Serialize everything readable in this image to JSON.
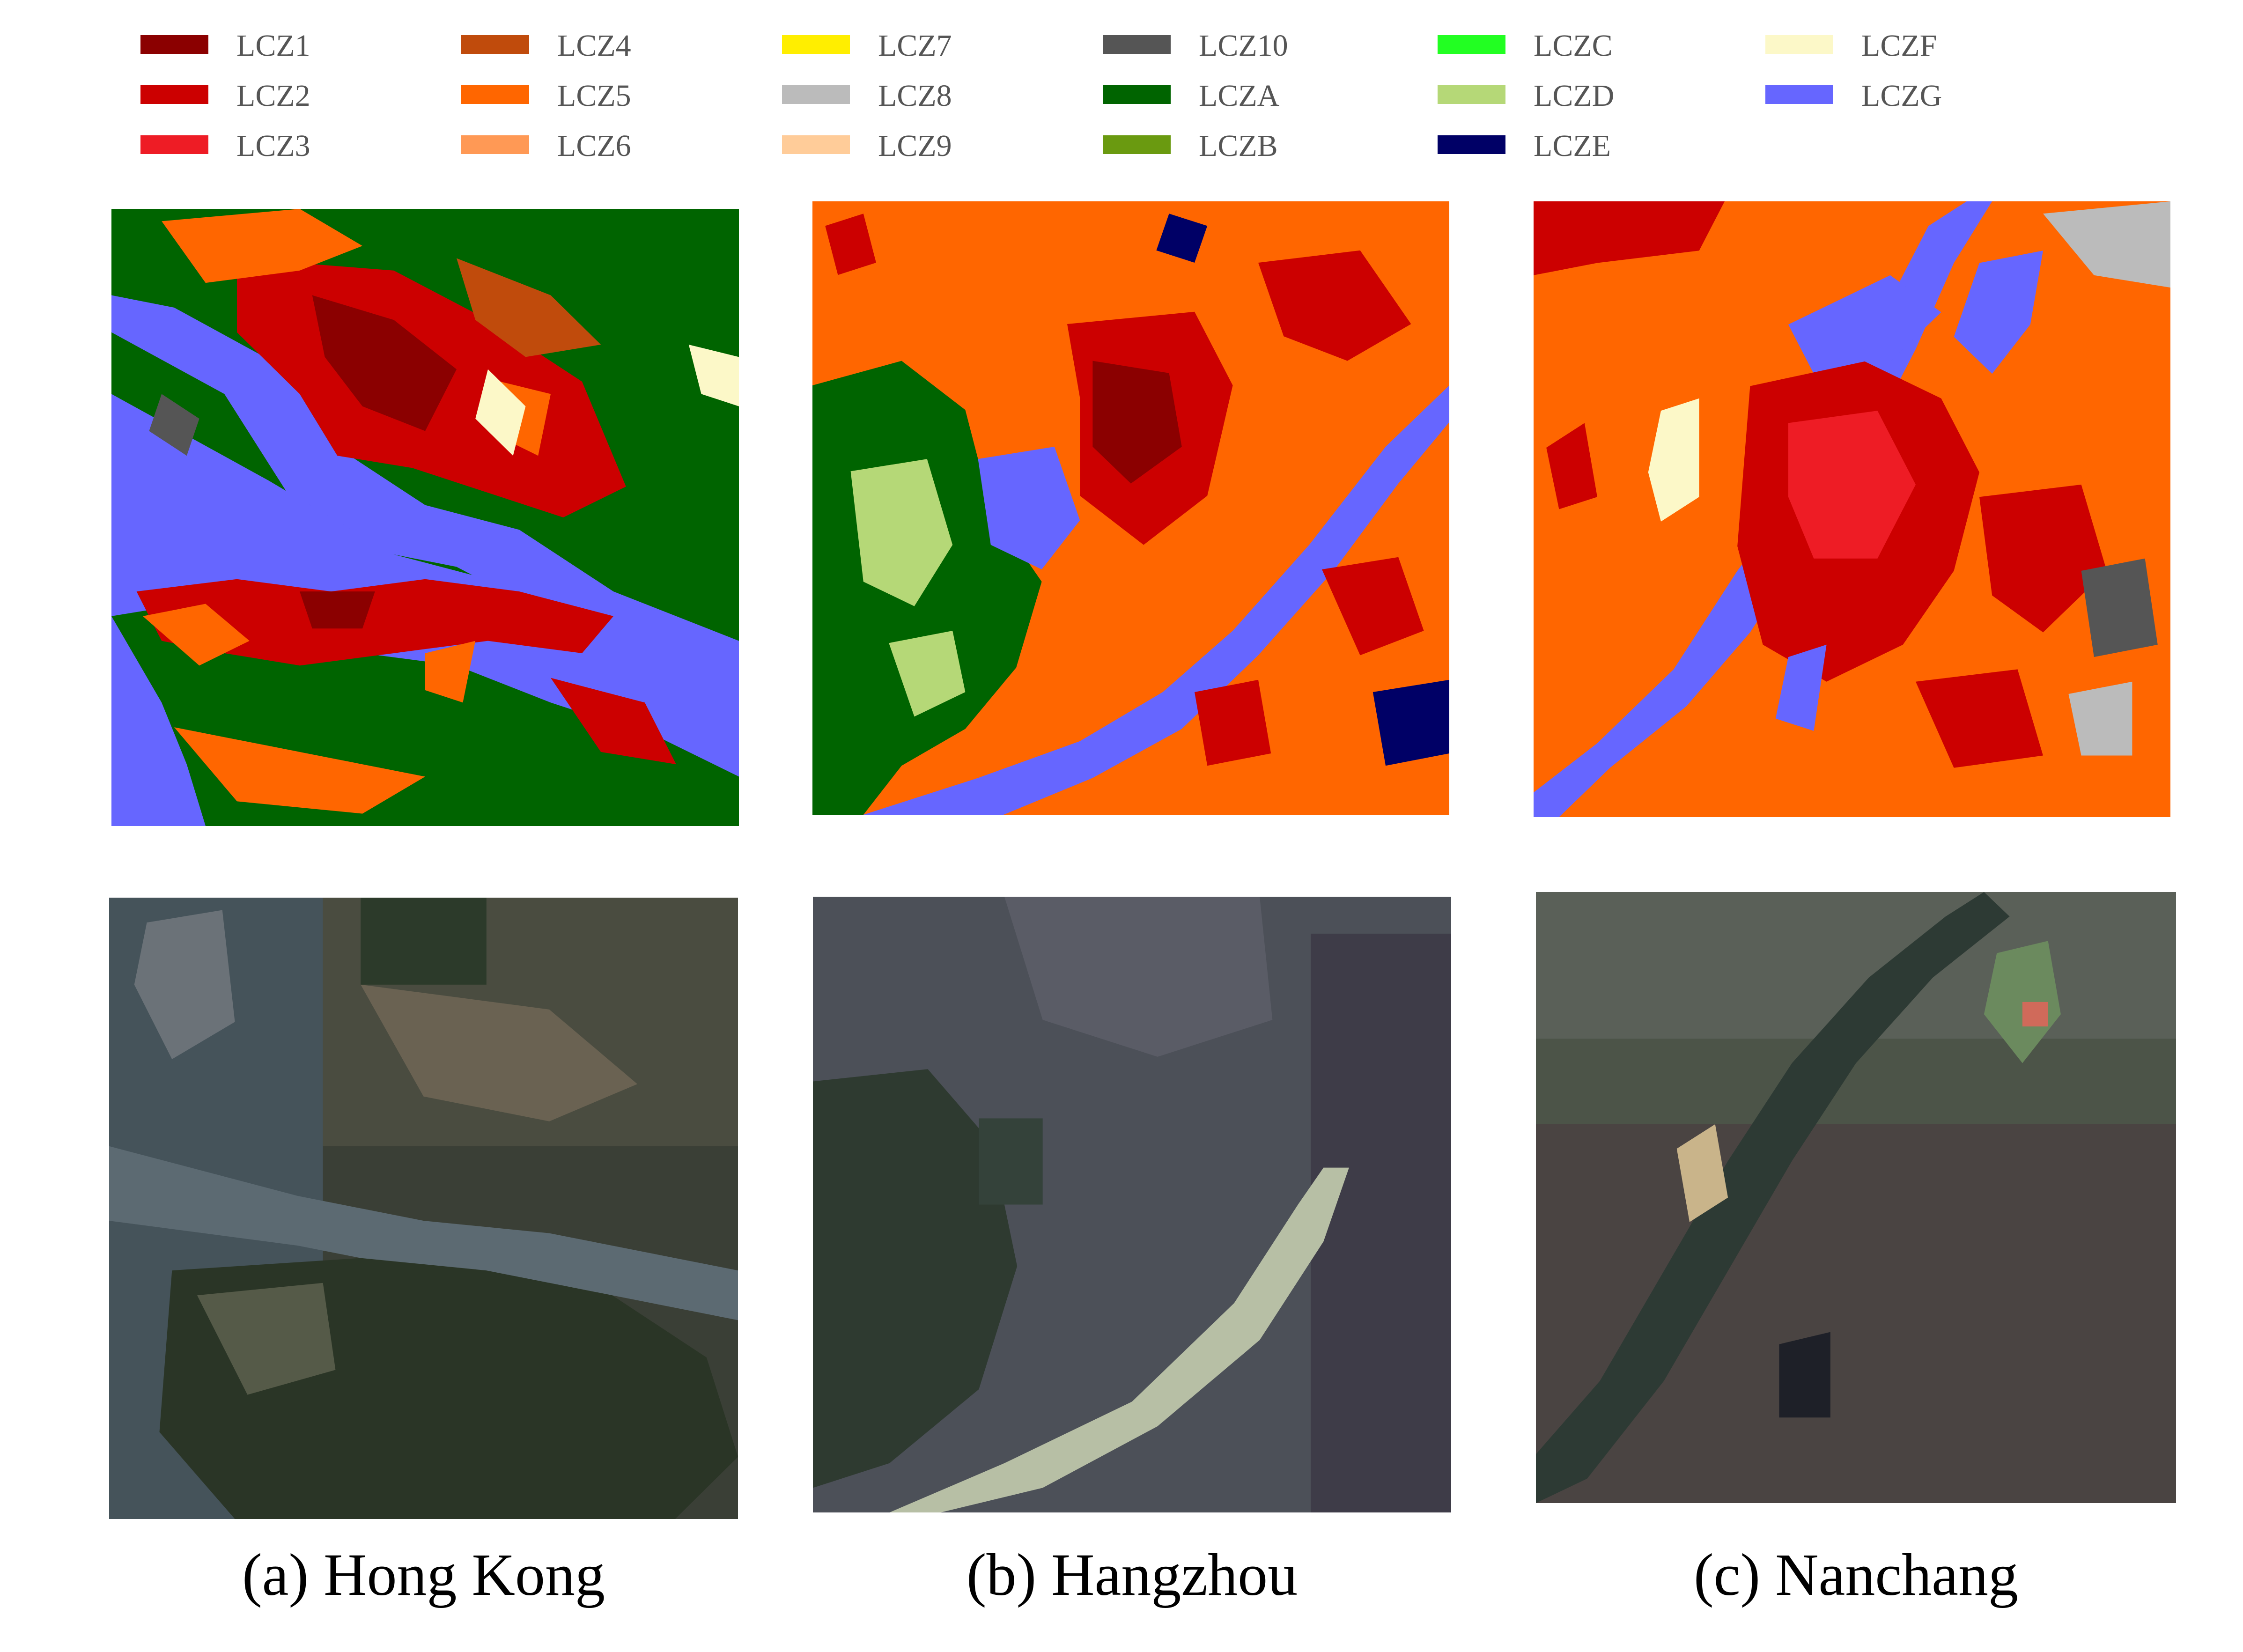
{
  "legend": [
    {
      "label": "LCZ1",
      "color": "#8b0000"
    },
    {
      "label": "LCZ2",
      "color": "#cc0000"
    },
    {
      "label": "LCZ3",
      "color": "#ee1c25"
    },
    {
      "label": "LCZ4",
      "color": "#c04b0c"
    },
    {
      "label": "LCZ5",
      "color": "#ff6600"
    },
    {
      "label": "LCZ6",
      "color": "#ff9955"
    },
    {
      "label": "LCZ7",
      "color": "#ffee00"
    },
    {
      "label": "LCZ8",
      "color": "#bbbbbb"
    },
    {
      "label": "LCZ9",
      "color": "#ffcc99"
    },
    {
      "label": "LCZ10",
      "color": "#555555"
    },
    {
      "label": "LCZA",
      "color": "#006400"
    },
    {
      "label": "LCZB",
      "color": "#6a9a10"
    },
    {
      "label": "LCZC",
      "color": "#22ff22"
    },
    {
      "label": "LCZD",
      "color": "#b5d877"
    },
    {
      "label": "LCZE",
      "color": "#000066"
    },
    {
      "label": "LCZF",
      "color": "#fcf8c8"
    },
    {
      "label": "LCZG",
      "color": "#6666ff"
    }
  ],
  "captions": {
    "a": "(a) Hong Kong",
    "b": "(b) Hangzhou",
    "c": "(c) Nanchang"
  }
}
